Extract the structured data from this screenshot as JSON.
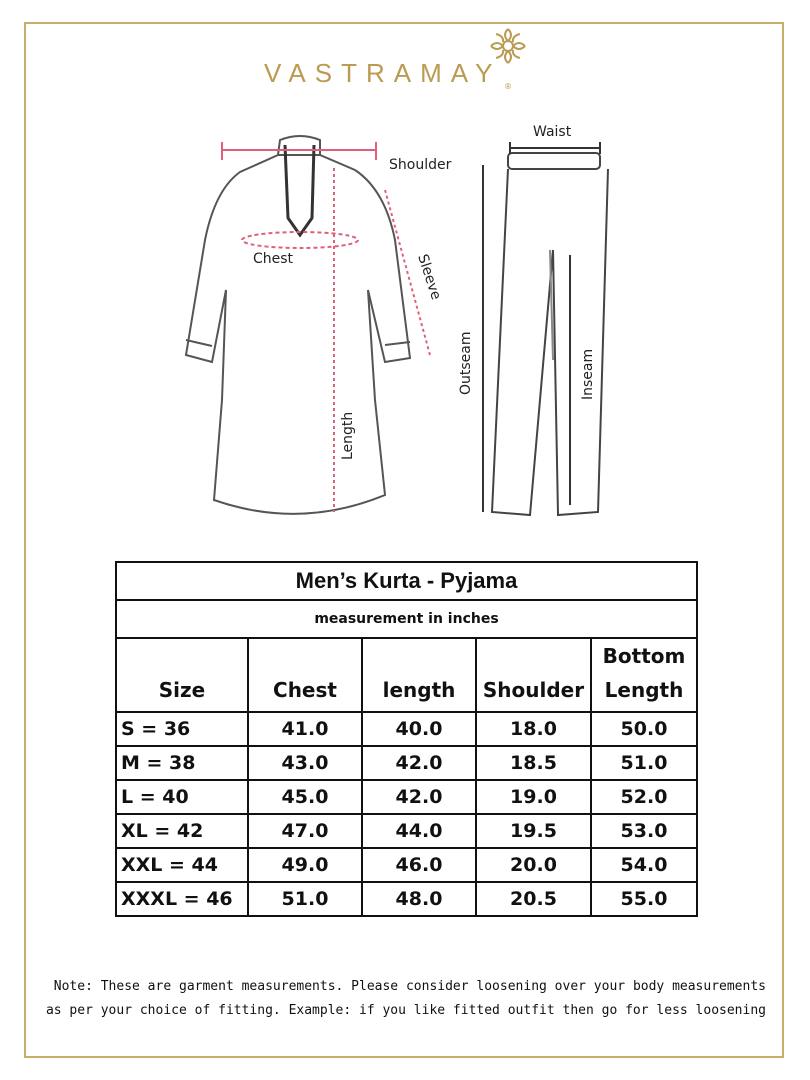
{
  "brand": {
    "name": "VASTRAMAY",
    "registered": "®",
    "accent": "#bb9a52"
  },
  "diagram": {
    "kurta_labels": {
      "shoulder": "Shoulder",
      "chest": "Chest",
      "sleeve": "Sleeve",
      "length": "Length"
    },
    "pyjama_labels": {
      "waist": "Waist",
      "outseam": "Outseam",
      "inseam": "Inseam"
    },
    "measure_line_color": "#e0607a"
  },
  "table": {
    "title": "Men’s Kurta - Pyjama",
    "subtitle": "measurement in inches",
    "headers": [
      "Size",
      "Chest",
      "length",
      "Shoulder",
      "Bottom Length"
    ],
    "rows": [
      [
        "S = 36",
        "41.0",
        "40.0",
        "18.0",
        "50.0"
      ],
      [
        "M = 38",
        "43.0",
        "42.0",
        "18.5",
        "51.0"
      ],
      [
        "L = 40",
        "45.0",
        "42.0",
        "19.0",
        "52.0"
      ],
      [
        "XL = 42",
        "47.0",
        "44.0",
        "19.5",
        "53.0"
      ],
      [
        "XXL = 44",
        "49.0",
        "46.0",
        "20.0",
        "54.0"
      ],
      [
        "XXXL = 46",
        "51.0",
        "48.0",
        "20.5",
        "55.0"
      ]
    ]
  },
  "note": {
    "line1": "Note: These are garment measurements. Please consider loosening over your body measurements",
    "line2": "as per your choice of fitting. Example: if you like fitted outfit then go for less loosening"
  }
}
